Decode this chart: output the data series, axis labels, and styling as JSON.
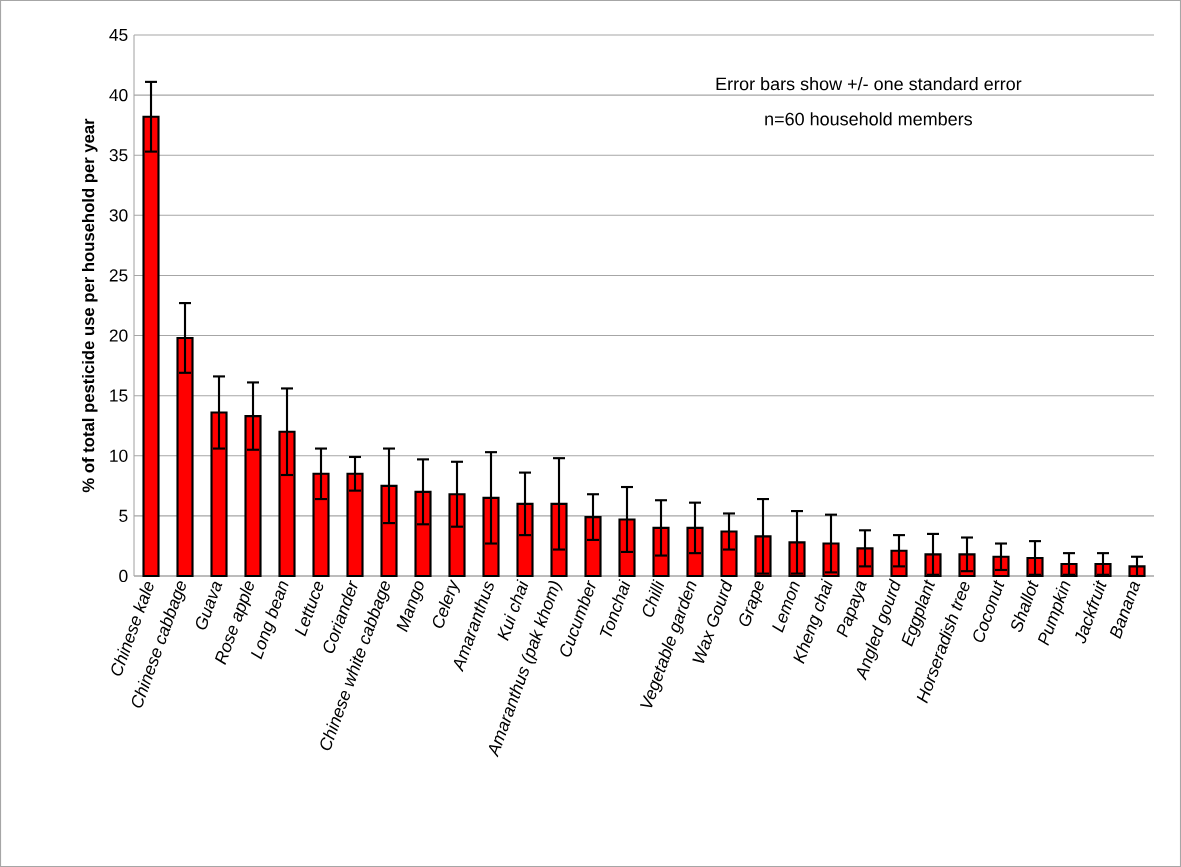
{
  "chart_data": {
    "type": "bar",
    "ylabel": "% of total pesticide use per household per year",
    "categories": [
      "Chinese kale",
      "Chinese cabbage",
      "Guava",
      "Rose apple",
      "Long bean",
      "Lettuce",
      "Coriander",
      "Chinese white cabbage",
      "Mango",
      "Celery",
      "Amaranthus",
      "Kui chai",
      "Amaranthus (pak khom)",
      "Cucumber",
      "Tonchai",
      "Chilli",
      "Vegetable garden",
      "Wax Gourd",
      "Grape",
      "Lemon",
      "Kheng chai",
      "Papaya",
      "Angled gourd",
      "Eggplant",
      "Horseradish tree",
      "Coconut",
      "Shallot",
      "Pumpkin",
      "Jackfruit",
      "Banana"
    ],
    "values": [
      38.2,
      19.8,
      13.6,
      13.3,
      12.0,
      8.5,
      8.5,
      7.5,
      7.0,
      6.8,
      6.5,
      6.0,
      6.0,
      4.9,
      4.7,
      4.0,
      4.0,
      3.7,
      3.3,
      2.8,
      2.7,
      2.3,
      2.1,
      1.8,
      1.8,
      1.6,
      1.5,
      1.0,
      1.0,
      0.8
    ],
    "errors": [
      2.9,
      2.9,
      3.0,
      2.8,
      3.6,
      2.1,
      1.4,
      3.1,
      2.7,
      2.7,
      3.8,
      2.6,
      3.8,
      1.9,
      2.7,
      2.3,
      2.1,
      1.5,
      3.1,
      2.6,
      2.4,
      1.5,
      1.3,
      1.7,
      1.4,
      1.1,
      1.4,
      0.9,
      0.9,
      0.8
    ],
    "color": "#ff0000",
    "ylim": [
      0,
      45
    ],
    "yticks": [
      0,
      5,
      10,
      15,
      20,
      25,
      30,
      35,
      40,
      45
    ],
    "grid": "y",
    "annotations": [
      "Error bars show  +/- one standard error",
      "n=60 household members"
    ]
  }
}
